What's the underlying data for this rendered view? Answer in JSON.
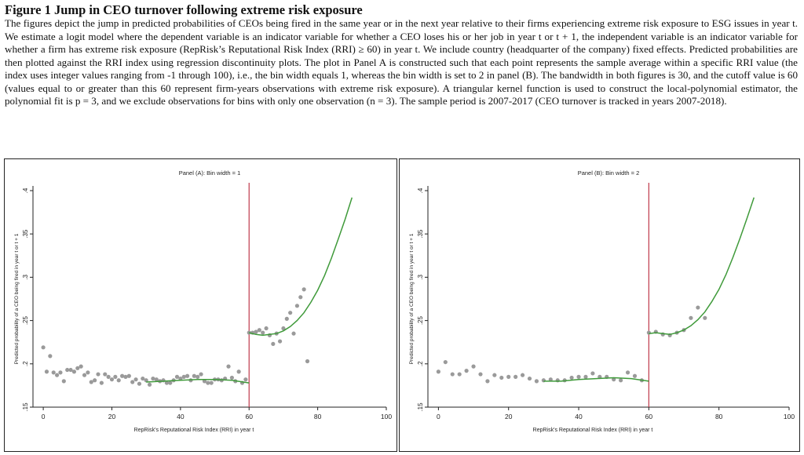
{
  "figure": {
    "title": "Figure 1 Jump in CEO turnover following extreme risk exposure",
    "caption": "The figures depict the jump in predicted probabilities of CEOs being fired in the same year or in the next year relative to their firms experiencing extreme risk exposure to ESG issues in year t. We estimate a logit model where the dependent variable is an indicator variable for whether a CEO loses his or her job in year t or t + 1, the independent variable is an indicator variable for whether a firm has extreme risk exposure (RepRisk’s Reputational Risk Index (RRI) ≥ 60) in year t. We include country (headquarter of the company) fixed effects. Predicted probabilities are then plotted against the RRI index using regression discontinuity plots. The plot in Panel A is constructed such that each point represents the sample average within a specific RRI value (the index uses integer values ranging from -1 through 100), i.e., the bin width equals 1, whereas the bin width is set to 2 in panel (B). The bandwidth in both figures is 30, and the cutoff value is 60 (values equal to or greater than this 60 represent firm-years observations with extreme risk exposure). A triangular kernel function is used to construct the local-polynomial estimator, the polynomial fit is p = 3, and we exclude observations for bins with only one observation (n = 3). The sample period is 2007-2017 (CEO turnover is tracked in years 2007-2018)."
  },
  "colors": {
    "points": "#9a9a9a",
    "fit": "#3f9a3a",
    "cutoff": "#c0394b",
    "axis": "#222222"
  },
  "chart_data": [
    {
      "type": "scatter",
      "title": "Panel (A): Bin width = 1",
      "xlabel": "RepRisk's Reputational Risk Index (RRI) in year t",
      "ylabel": "Predicted probability of a CEO being fired in year t or t + 1",
      "xlim": [
        -3,
        100
      ],
      "ylim": [
        0.15,
        0.4
      ],
      "xticks": [
        "0",
        "20",
        "40",
        "60",
        "80",
        "100"
      ],
      "yticks": [
        ".15",
        ".2",
        ".25",
        ".3",
        ".35",
        ".4"
      ],
      "cutoff": 60,
      "points": {
        "x": [
          0,
          1,
          2,
          3,
          4,
          5,
          6,
          7,
          8,
          9,
          10,
          11,
          12,
          13,
          14,
          15,
          16,
          17,
          18,
          19,
          20,
          21,
          22,
          23,
          24,
          25,
          26,
          27,
          28,
          29,
          30,
          31,
          32,
          33,
          34,
          35,
          36,
          37,
          38,
          39,
          40,
          41,
          42,
          43,
          44,
          45,
          46,
          47,
          48,
          49,
          50,
          51,
          52,
          53,
          54,
          55,
          56,
          57,
          58,
          59,
          60,
          61,
          62,
          63,
          64,
          65,
          66,
          67,
          68,
          69,
          70,
          71,
          72,
          73,
          74,
          75,
          76,
          77
        ],
        "y": [
          0.219,
          0.191,
          0.209,
          0.19,
          0.187,
          0.19,
          0.18,
          0.193,
          0.193,
          0.191,
          0.195,
          0.197,
          0.187,
          0.19,
          0.179,
          0.181,
          0.188,
          0.178,
          0.188,
          0.185,
          0.182,
          0.185,
          0.181,
          0.186,
          0.185,
          0.186,
          0.179,
          0.182,
          0.177,
          0.183,
          0.181,
          0.176,
          0.183,
          0.182,
          0.18,
          0.181,
          0.178,
          0.178,
          0.181,
          0.185,
          0.183,
          0.185,
          0.186,
          0.181,
          0.186,
          0.185,
          0.188,
          0.18,
          0.178,
          0.178,
          0.182,
          0.182,
          0.181,
          0.183,
          0.197,
          0.184,
          0.18,
          0.191,
          0.178,
          0.182,
          0.236,
          0.236,
          0.237,
          0.239,
          0.236,
          0.241,
          0.233,
          0.223,
          0.235,
          0.226,
          0.241,
          0.252,
          0.259,
          0.235,
          0.267,
          0.277,
          0.286,
          0.203
        ]
      },
      "fit_left": {
        "x": [
          30,
          35,
          40,
          45,
          50,
          55,
          60
        ],
        "y": [
          0.179,
          0.18,
          0.181,
          0.182,
          0.182,
          0.181,
          0.178
        ]
      },
      "fit_right": {
        "x": [
          60,
          62,
          64,
          66,
          68,
          70,
          72,
          74,
          76,
          78,
          80,
          82,
          84,
          86,
          88,
          90
        ],
        "y": [
          0.236,
          0.234,
          0.233,
          0.234,
          0.235,
          0.238,
          0.243,
          0.25,
          0.259,
          0.271,
          0.285,
          0.302,
          0.322,
          0.344,
          0.367,
          0.392
        ]
      }
    },
    {
      "type": "scatter",
      "title": "Panel (B): Bin width = 2",
      "xlabel": "RepRisk's Reputational Risk Index (RRI) in year t",
      "ylabel": "Predicted probability of a CEO being fired in year t or t + 1",
      "xlim": [
        -3,
        100
      ],
      "ylim": [
        0.15,
        0.4
      ],
      "xticks": [
        "0",
        "20",
        "40",
        "60",
        "80",
        "100"
      ],
      "yticks": [
        ".15",
        ".2",
        ".25",
        ".3",
        ".35",
        ".4"
      ],
      "cutoff": 60,
      "points": {
        "x": [
          0,
          2,
          4,
          6,
          8,
          10,
          12,
          14,
          16,
          18,
          20,
          22,
          24,
          26,
          28,
          30,
          32,
          34,
          36,
          38,
          40,
          42,
          44,
          46,
          48,
          50,
          52,
          54,
          56,
          58,
          60,
          62,
          64,
          66,
          68,
          70,
          72,
          74,
          76
        ],
        "y": [
          0.191,
          0.202,
          0.188,
          0.188,
          0.192,
          0.197,
          0.188,
          0.18,
          0.187,
          0.184,
          0.185,
          0.185,
          0.187,
          0.183,
          0.18,
          0.181,
          0.182,
          0.181,
          0.181,
          0.184,
          0.185,
          0.185,
          0.189,
          0.185,
          0.185,
          0.182,
          0.181,
          0.19,
          0.186,
          0.181,
          0.236,
          0.237,
          0.234,
          0.233,
          0.236,
          0.239,
          0.253,
          0.265,
          0.253
        ]
      },
      "fit_left": {
        "x": [
          30,
          35,
          40,
          45,
          50,
          55,
          60
        ],
        "y": [
          0.18,
          0.18,
          0.182,
          0.183,
          0.184,
          0.183,
          0.18
        ]
      },
      "fit_right": {
        "x": [
          60,
          62,
          64,
          66,
          68,
          70,
          72,
          74,
          76,
          78,
          80,
          82,
          84,
          86,
          88,
          90
        ],
        "y": [
          0.235,
          0.236,
          0.235,
          0.234,
          0.236,
          0.239,
          0.244,
          0.251,
          0.26,
          0.272,
          0.286,
          0.303,
          0.323,
          0.345,
          0.368,
          0.392
        ]
      }
    }
  ]
}
